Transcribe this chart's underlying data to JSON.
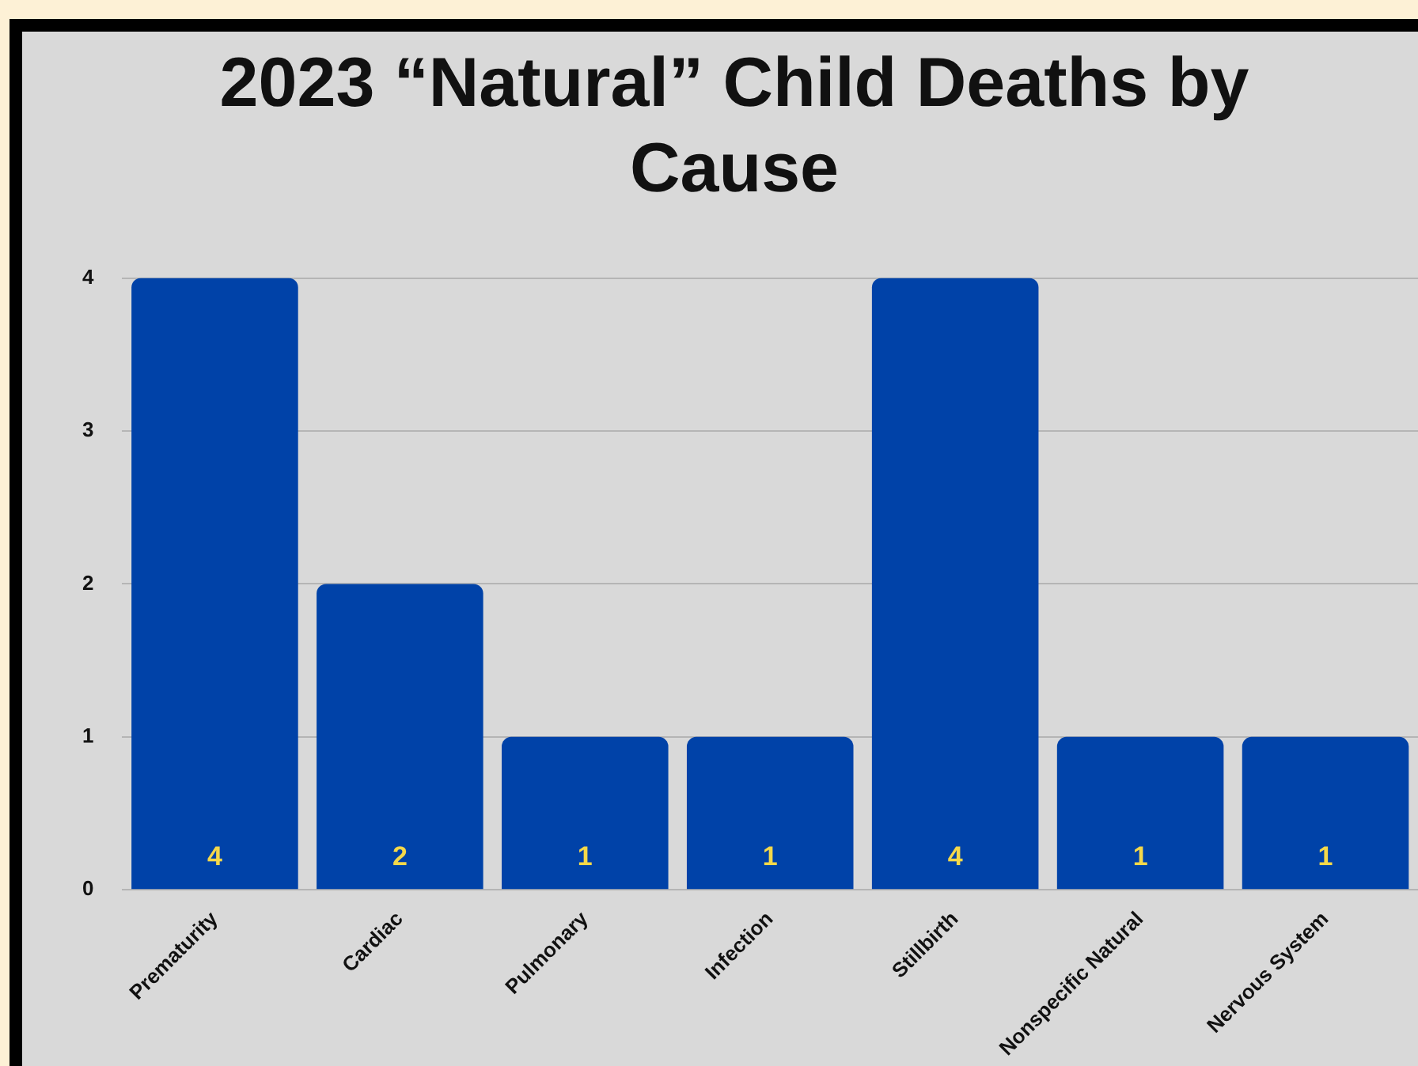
{
  "chart_data": {
    "type": "bar",
    "title": "2023 “Natural” Child Deaths by Cause",
    "categories": [
      "Prematurity",
      "Cardiac",
      "Pulmonary",
      "Infection",
      "Stillbirth",
      "Nonspecific Natural",
      "Nervous System"
    ],
    "values": [
      4,
      2,
      1,
      1,
      4,
      1,
      1
    ],
    "color": "#0042a8",
    "ylim": [
      0,
      4
    ],
    "yticks": [
      0,
      1,
      2,
      3,
      4
    ],
    "grid": "y",
    "data_labels": true
  }
}
